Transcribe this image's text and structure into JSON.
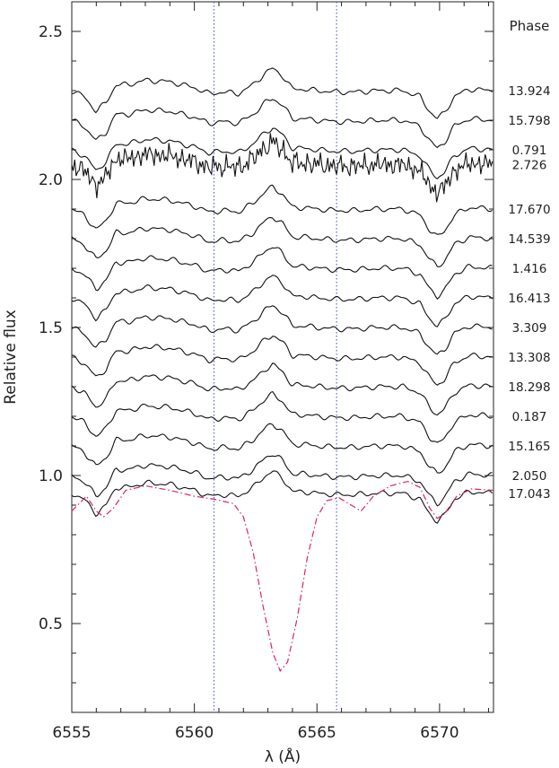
{
  "chart_data": {
    "type": "line",
    "title": "",
    "xlabel": "λ (Å)",
    "ylabel": "Relative flux",
    "xlim": [
      6555,
      6572.2
    ],
    "ylim": [
      0.2,
      2.6
    ],
    "xticks": [
      6555,
      6560,
      6565,
      6570
    ],
    "xtick_labels": [
      "6555",
      "6560",
      "6565",
      "6570"
    ],
    "yticks": [
      0.5,
      1.0,
      1.5,
      2.0,
      2.5
    ],
    "ytick_labels": [
      "0.5",
      "1.0",
      "1.5",
      "2.0",
      "2.5"
    ],
    "minor_x_step": 1,
    "minor_y_step": 0.1,
    "grid": false,
    "phase_title": "Phase",
    "vertical_lines": [
      6560.8,
      6565.8
    ],
    "vertical_line_colors": [
      "#4a5ad8",
      "#4a5ad8"
    ],
    "profile_points": [
      [
        6555.0,
        0.0
      ],
      [
        6555.5,
        -0.02
      ],
      [
        6556.0,
        -0.07
      ],
      [
        6556.4,
        -0.04
      ],
      [
        6556.8,
        0.02
      ],
      [
        6557.3,
        0.02
      ],
      [
        6558.0,
        0.035
      ],
      [
        6559.0,
        0.03
      ],
      [
        6560.0,
        0.01
      ],
      [
        6560.6,
        -0.01
      ],
      [
        6561.2,
        -0.005
      ],
      [
        6561.8,
        -0.01
      ],
      [
        6562.4,
        0.02
      ],
      [
        6562.9,
        0.06
      ],
      [
        6563.2,
        0.075
      ],
      [
        6563.6,
        0.05
      ],
      [
        6564.0,
        0.005
      ],
      [
        6564.5,
        0.005
      ],
      [
        6565.0,
        0.0
      ],
      [
        6565.8,
        -0.005
      ],
      [
        6566.5,
        -0.005
      ],
      [
        6567.5,
        0.0
      ],
      [
        6568.5,
        0.0
      ],
      [
        6569.2,
        -0.02
      ],
      [
        6569.6,
        -0.07
      ],
      [
        6569.9,
        -0.095
      ],
      [
        6570.2,
        -0.075
      ],
      [
        6570.6,
        -0.02
      ],
      [
        6571.2,
        0.005
      ],
      [
        6572.2,
        0.0
      ]
    ],
    "series": [
      {
        "name": "13.924",
        "offset": 2.3
      },
      {
        "name": "15.798",
        "offset": 2.2
      },
      {
        "name": "0.791",
        "offset": 2.1
      },
      {
        "name": "2.726",
        "offset": 2.05,
        "noisy": true
      },
      {
        "name": "17.670",
        "offset": 1.9
      },
      {
        "name": "14.539",
        "offset": 1.8
      },
      {
        "name": "1.416",
        "offset": 1.7
      },
      {
        "name": "16.413",
        "offset": 1.6
      },
      {
        "name": "3.309",
        "offset": 1.5
      },
      {
        "name": "13.308",
        "offset": 1.4
      },
      {
        "name": "18.298",
        "offset": 1.3
      },
      {
        "name": "0.187",
        "offset": 1.2
      },
      {
        "name": "15.165",
        "offset": 1.1
      },
      {
        "name": "2.050",
        "offset": 1.0
      },
      {
        "name": "17.043",
        "offset": 0.94
      }
    ],
    "reference": {
      "style": "dash-dot",
      "color": "#d8246a",
      "points": [
        [
          6555.0,
          0.88
        ],
        [
          6555.6,
          0.93
        ],
        [
          6556.0,
          0.88
        ],
        [
          6556.3,
          0.86
        ],
        [
          6556.7,
          0.89
        ],
        [
          6557.2,
          0.95
        ],
        [
          6558.0,
          0.965
        ],
        [
          6559.0,
          0.95
        ],
        [
          6560.0,
          0.93
        ],
        [
          6560.8,
          0.92
        ],
        [
          6561.6,
          0.905
        ],
        [
          6562.0,
          0.86
        ],
        [
          6562.4,
          0.74
        ],
        [
          6562.8,
          0.56
        ],
        [
          6563.2,
          0.4
        ],
        [
          6563.5,
          0.34
        ],
        [
          6563.8,
          0.37
        ],
        [
          6564.2,
          0.52
        ],
        [
          6564.6,
          0.72
        ],
        [
          6565.0,
          0.86
        ],
        [
          6565.4,
          0.915
        ],
        [
          6565.9,
          0.925
        ],
        [
          6566.4,
          0.9
        ],
        [
          6566.8,
          0.88
        ],
        [
          6567.3,
          0.93
        ],
        [
          6568.0,
          0.965
        ],
        [
          6568.7,
          0.98
        ],
        [
          6569.2,
          0.96
        ],
        [
          6569.6,
          0.89
        ],
        [
          6569.9,
          0.855
        ],
        [
          6570.2,
          0.87
        ],
        [
          6570.7,
          0.93
        ],
        [
          6571.3,
          0.955
        ],
        [
          6572.2,
          0.95
        ]
      ]
    }
  }
}
